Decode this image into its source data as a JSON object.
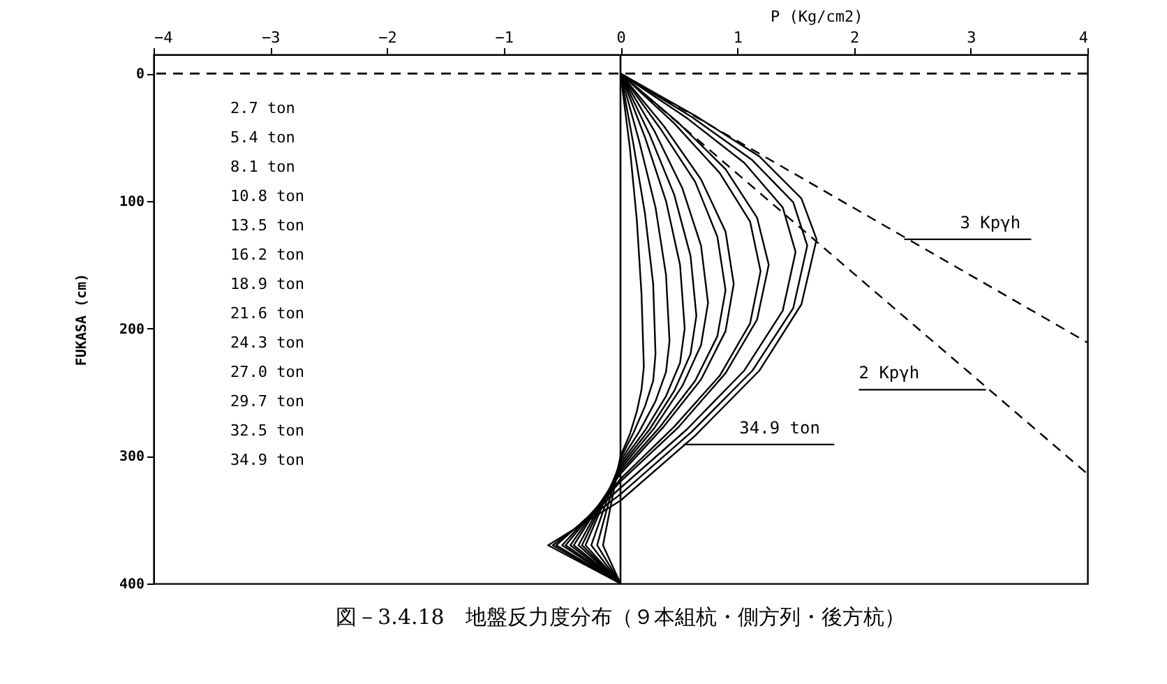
{
  "chart_data": {
    "type": "line",
    "title": "図－3.4.18　地盤反力度分布（９本組杭・側方列・後方杭）",
    "xlabel": "P (Kg/cm2)",
    "ylabel": "FUKASA (cm)",
    "xlim": [
      -4,
      4
    ],
    "xticks": [
      -4,
      -3,
      -2,
      -1,
      0,
      1,
      2,
      3,
      4
    ],
    "ylim": [
      400,
      -15
    ],
    "yticks": [
      0,
      100,
      200,
      300,
      400
    ],
    "grid": false,
    "ref_lines": [
      {
        "axis": "y",
        "value": 0,
        "line_style": "dashed",
        "color": "#000000"
      },
      {
        "axis": "x",
        "value": 0,
        "line_style": "solid",
        "color": "#000000"
      }
    ],
    "annotations": [
      "2.7 ton",
      "5.4 ton",
      "8.1 ton",
      "10.8 ton",
      "13.5 ton",
      "16.2 ton",
      "18.9 ton",
      "21.6 ton",
      "24.3 ton",
      "27.0 ton",
      "29.7 ton",
      "32.5 ton",
      "34.9 ton",
      {
        "text": "3 Kpγh",
        "x": 2.43,
        "y": 130
      },
      {
        "text": "2 Kpγh",
        "x": 3.13,
        "y": 248
      },
      {
        "text": "34.9 ton",
        "x": 0.54,
        "y": 291
      }
    ],
    "series": [
      {
        "color": "#000000",
        "line_style": "solid",
        "x": [
          0,
          0.08,
          0.14,
          0.18,
          0.2,
          0.18,
          0.14,
          0.08,
          0,
          -0.15,
          0
        ],
        "values": [
          0,
          58,
          115,
          173,
          230,
          248,
          265,
          283,
          300,
          370,
          400
        ]
      },
      {
        "color": "#000000",
        "line_style": "solid",
        "x": [
          0,
          0.11,
          0.21,
          0.28,
          0.3,
          0.28,
          0.21,
          0.11,
          0,
          -0.2,
          0
        ],
        "values": [
          0,
          55,
          110,
          165,
          220,
          241,
          261,
          282,
          302,
          370,
          400
        ]
      },
      {
        "color": "#000000",
        "line_style": "solid",
        "x": [
          0,
          0.16,
          0.3,
          0.39,
          0.42,
          0.39,
          0.3,
          0.16,
          0,
          -0.25,
          0
        ],
        "values": [
          0,
          53,
          105,
          158,
          210,
          234,
          257,
          281,
          304,
          370,
          400
        ]
      },
      {
        "color": "#000000",
        "line_style": "solid",
        "x": [
          0,
          0.21,
          0.39,
          0.51,
          0.55,
          0.51,
          0.39,
          0.21,
          0,
          -0.3,
          0
        ],
        "values": [
          0,
          50,
          100,
          150,
          200,
          227,
          253,
          280,
          306,
          370,
          400
        ]
      },
      {
        "color": "#000000",
        "line_style": "solid",
        "x": [
          0,
          0.25,
          0.46,
          0.6,
          0.65,
          0.6,
          0.46,
          0.25,
          0,
          -0.33,
          0
        ],
        "values": [
          0,
          48,
          95,
          143,
          190,
          220,
          249,
          279,
          308,
          370,
          400
        ]
      },
      {
        "color": "#000000",
        "line_style": "solid",
        "x": [
          0,
          0.29,
          0.53,
          0.69,
          0.75,
          0.69,
          0.53,
          0.29,
          0,
          -0.36,
          0
        ],
        "values": [
          0,
          45,
          90,
          135,
          180,
          213,
          245,
          278,
          310,
          370,
          400
        ]
      },
      {
        "color": "#000000",
        "line_style": "solid",
        "x": [
          0,
          0.34,
          0.64,
          0.83,
          0.9,
          0.83,
          0.64,
          0.34,
          0,
          -0.4,
          0
        ],
        "values": [
          0,
          43,
          85,
          128,
          170,
          206,
          241,
          277,
          312,
          370,
          400
        ]
      },
      {
        "color": "#000000",
        "line_style": "solid",
        "x": [
          0,
          0.37,
          0.69,
          0.9,
          0.97,
          0.9,
          0.69,
          0.37,
          0,
          -0.43,
          0
        ],
        "values": [
          0,
          41,
          83,
          124,
          165,
          202,
          240,
          277,
          314,
          370,
          400
        ]
      },
      {
        "color": "#000000",
        "line_style": "solid",
        "x": [
          0,
          0.46,
          0.85,
          1.11,
          1.2,
          1.11,
          0.85,
          0.46,
          0,
          -0.47,
          0
        ],
        "values": [
          0,
          39,
          78,
          116,
          155,
          196,
          237,
          277,
          318,
          370,
          400
        ]
      },
      {
        "color": "#000000",
        "line_style": "solid",
        "x": [
          0,
          0.49,
          0.9,
          1.17,
          1.27,
          1.17,
          0.9,
          0.49,
          0,
          -0.5,
          0
        ],
        "values": [
          0,
          38,
          75,
          113,
          150,
          193,
          235,
          278,
          320,
          370,
          400
        ]
      },
      {
        "color": "#000000",
        "line_style": "solid",
        "x": [
          0,
          0.57,
          1.06,
          1.39,
          1.5,
          1.39,
          1.06,
          0.57,
          0,
          -0.55,
          0
        ],
        "values": [
          0,
          35,
          70,
          105,
          140,
          186,
          233,
          279,
          325,
          370,
          400
        ]
      },
      {
        "color": "#000000",
        "line_style": "solid",
        "x": [
          0,
          0.61,
          1.13,
          1.48,
          1.6,
          1.48,
          1.13,
          0.61,
          0,
          -0.58,
          0
        ],
        "values": [
          0,
          34,
          68,
          101,
          135,
          184,
          233,
          281,
          330,
          370,
          400
        ]
      },
      {
        "color": "#000000",
        "line_style": "solid",
        "x": [
          0,
          0.64,
          1.19,
          1.55,
          1.68,
          1.55,
          1.19,
          0.64,
          0,
          -0.62,
          0
        ],
        "values": [
          0,
          33,
          65,
          98,
          130,
          181,
          233,
          284,
          335,
          370,
          400
        ]
      },
      {
        "type": "line",
        "color": "#000000",
        "line_style": "dashed",
        "x": [
          0,
          4
        ],
        "values": [
          0,
          211
        ]
      },
      {
        "type": "line",
        "color": "#000000",
        "line_style": "dashed",
        "x": [
          0,
          4
        ],
        "values": [
          0,
          314
        ]
      }
    ]
  }
}
